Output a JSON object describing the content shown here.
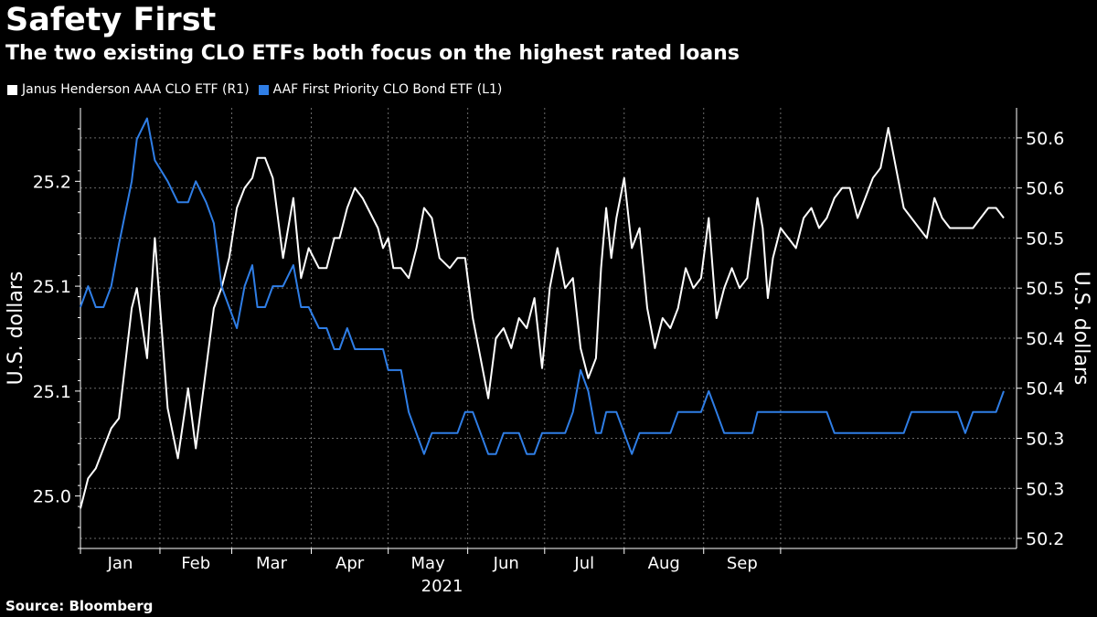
{
  "header": {
    "title": "Safety First",
    "subtitle": "The two existing CLO ETFs both focus on the highest rated loans"
  },
  "footer": {
    "source": "Source: Bloomberg"
  },
  "colors": {
    "background": "#000000",
    "series_white": "#ffffff",
    "series_blue": "#2f7ee6",
    "grid": "#6a6a6a"
  },
  "chart_data": {
    "type": "line",
    "title": "Safety First",
    "subtitle": "The two existing CLO ETFs both focus on the highest rated loans",
    "x_axis": {
      "months": [
        "Jan",
        "Feb",
        "Mar",
        "Apr",
        "May",
        "Jun",
        "Jul",
        "Aug",
        "Sep"
      ],
      "year_label": "2021"
    },
    "left_axis": {
      "label": "U.S. dollars",
      "ticks": [
        "25.2",
        "25.1",
        "25.1",
        "25.0"
      ],
      "tick_values": [
        25.2,
        25.15,
        25.1,
        25.05
      ],
      "range": [
        25.025,
        25.235
      ]
    },
    "right_axis": {
      "label": "U.S. dollars",
      "ticks": [
        "50.6",
        "50.6",
        "50.5",
        "50.5",
        "50.4",
        "50.4",
        "50.3",
        "50.3",
        "50.2"
      ],
      "tick_values": [
        50.6,
        50.55,
        50.5,
        50.45,
        50.4,
        50.35,
        50.3,
        50.25,
        50.2
      ],
      "range": [
        50.19,
        50.63
      ]
    },
    "legend_position": "top-left",
    "grid": true,
    "series": [
      {
        "name": "Janus Henderson AAA CLO ETF (R1)",
        "axis": "right",
        "color": "#ffffff",
        "x_day": [
          0,
          3,
          6,
          9,
          12,
          15,
          20,
          22,
          26,
          29,
          34,
          38,
          42,
          45,
          49,
          52,
          55,
          58,
          61,
          64,
          67,
          69,
          72,
          75,
          79,
          83,
          86,
          89,
          93,
          96,
          99,
          101,
          104,
          107,
          110,
          112,
          114,
          116,
          118,
          120,
          122,
          125,
          128,
          131,
          134,
          137,
          140,
          144,
          147,
          150,
          153,
          156,
          159,
          162,
          165,
          168,
          171,
          174,
          177,
          180,
          183,
          186,
          189,
          192,
          195,
          198,
          201,
          203,
          205,
          207,
          209,
          212,
          215,
          218,
          221,
          224,
          227,
          230,
          233,
          236,
          239,
          242,
          245,
          248,
          251,
          254,
          257,
          260,
          262,
          264,
          266,
          268,
          270,
          273,
          276,
          279,
          282,
          285,
          288,
          291,
          294,
          297,
          300,
          303,
          306,
          309,
          312,
          315,
          318,
          321,
          324,
          327,
          330,
          333,
          336,
          339,
          342,
          345,
          348,
          351,
          354,
          357,
          360
        ],
        "values": [
          50.23,
          50.26,
          50.27,
          50.29,
          50.31,
          50.32,
          50.43,
          50.45,
          50.38,
          50.5,
          50.33,
          50.28,
          50.35,
          50.29,
          50.37,
          50.43,
          50.45,
          50.48,
          50.53,
          50.55,
          50.56,
          50.58,
          50.58,
          50.56,
          50.48,
          50.54,
          50.46,
          50.49,
          50.47,
          50.47,
          50.5,
          50.5,
          50.53,
          50.55,
          50.54,
          50.53,
          50.52,
          50.51,
          50.49,
          50.5,
          50.47,
          50.47,
          50.46,
          50.49,
          50.53,
          50.52,
          50.48,
          50.47,
          50.48,
          50.48,
          50.42,
          50.38,
          50.34,
          50.4,
          50.41,
          50.39,
          50.42,
          50.41,
          50.44,
          50.37,
          50.45,
          50.49,
          50.45,
          50.46,
          50.39,
          50.36,
          50.38,
          50.47,
          50.53,
          50.48,
          50.52,
          50.56,
          50.49,
          50.51,
          50.43,
          50.39,
          50.42,
          50.41,
          50.43,
          50.47,
          50.45,
          50.46,
          50.52,
          50.42,
          50.45,
          50.47,
          50.45,
          50.46,
          50.5,
          50.54,
          50.51,
          50.44,
          50.48,
          50.51,
          50.5,
          50.49,
          50.52,
          50.53,
          50.51,
          50.52,
          50.54,
          50.55,
          50.55,
          50.52,
          50.54,
          50.56,
          50.57,
          50.61,
          50.57,
          50.53,
          50.52,
          50.51,
          50.5,
          50.54,
          50.52,
          50.51,
          50.51,
          50.51,
          50.51,
          50.52,
          50.53,
          50.53,
          50.52
        ]
      },
      {
        "name": "AAF First Priority CLO Bond ETF  (L1)",
        "axis": "left",
        "color": "#2f7ee6",
        "x_day": [
          0,
          3,
          6,
          9,
          12,
          15,
          20,
          22,
          26,
          29,
          34,
          38,
          42,
          45,
          49,
          52,
          55,
          58,
          61,
          64,
          67,
          69,
          72,
          75,
          79,
          83,
          86,
          89,
          93,
          96,
          99,
          101,
          104,
          107,
          110,
          112,
          114,
          116,
          118,
          120,
          122,
          125,
          128,
          131,
          134,
          137,
          140,
          144,
          147,
          150,
          153,
          156,
          159,
          162,
          165,
          168,
          171,
          174,
          177,
          180,
          183,
          186,
          189,
          192,
          195,
          198,
          201,
          203,
          205,
          207,
          209,
          212,
          215,
          218,
          221,
          224,
          227,
          230,
          233,
          236,
          239,
          242,
          245,
          248,
          251,
          254,
          257,
          260,
          262,
          264,
          266,
          268,
          270,
          273,
          276,
          279,
          282,
          285,
          288,
          291,
          294,
          297,
          300,
          303,
          306,
          309,
          312,
          315,
          318,
          321,
          324,
          327,
          330,
          333,
          336,
          339,
          342,
          345,
          348,
          351,
          354,
          357,
          360
        ],
        "values": [
          25.14,
          25.15,
          25.14,
          25.14,
          25.15,
          25.17,
          25.2,
          25.22,
          25.23,
          25.21,
          25.2,
          25.19,
          25.19,
          25.2,
          25.19,
          25.18,
          25.15,
          25.14,
          25.13,
          25.15,
          25.16,
          25.14,
          25.14,
          25.15,
          25.15,
          25.16,
          25.14,
          25.14,
          25.13,
          25.13,
          25.12,
          25.12,
          25.13,
          25.12,
          25.12,
          25.12,
          25.12,
          25.12,
          25.12,
          25.11,
          25.11,
          25.11,
          25.09,
          25.08,
          25.07,
          25.08,
          25.08,
          25.08,
          25.08,
          25.09,
          25.09,
          25.08,
          25.07,
          25.07,
          25.08,
          25.08,
          25.08,
          25.07,
          25.07,
          25.08,
          25.08,
          25.08,
          25.08,
          25.09,
          25.11,
          25.1,
          25.08,
          25.08,
          25.09,
          25.09,
          25.09,
          25.08,
          25.07,
          25.08,
          25.08,
          25.08,
          25.08,
          25.08,
          25.09,
          25.09,
          25.09,
          25.09,
          25.1,
          25.09,
          25.08,
          25.08,
          25.08,
          25.08,
          25.08,
          25.09,
          25.09,
          25.09,
          25.09,
          25.09,
          25.09,
          25.09,
          25.09,
          25.09,
          25.09,
          25.09,
          25.08,
          25.08,
          25.08,
          25.08,
          25.08,
          25.08,
          25.08,
          25.08,
          25.08,
          25.08,
          25.09,
          25.09,
          25.09,
          25.09,
          25.09,
          25.09,
          25.09,
          25.08,
          25.09,
          25.09,
          25.09,
          25.09,
          25.1
        ]
      }
    ]
  }
}
